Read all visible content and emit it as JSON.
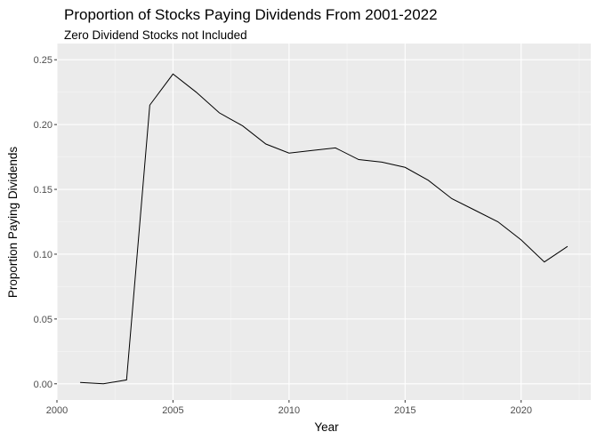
{
  "chart_data": {
    "type": "line",
    "title": "Proportion of Stocks Paying Dividends From 2001-2022",
    "subtitle": "Zero Dividend Stocks not Included",
    "xlabel": "Year",
    "ylabel": "Proportion Paying Dividends",
    "xlim": [
      2000,
      2023
    ],
    "ylim": [
      0,
      0.25
    ],
    "x_ticks": [
      2000,
      2005,
      2010,
      2015,
      2020
    ],
    "x_tick_labels": [
      "2000",
      "2005",
      "2010",
      "2015",
      "2020"
    ],
    "y_ticks": [
      0,
      0.05,
      0.1,
      0.15,
      0.2,
      0.25
    ],
    "y_tick_labels": [
      "0.00",
      "0.05",
      "0.10",
      "0.15",
      "0.20",
      "0.25"
    ],
    "grid": true,
    "background": "#ebebeb",
    "grid_color": "#ffffff",
    "line_color": "#000000",
    "x": [
      2001,
      2002,
      2003,
      2004,
      2005,
      2006,
      2007,
      2008,
      2009,
      2010,
      2011,
      2012,
      2013,
      2014,
      2015,
      2016,
      2017,
      2018,
      2019,
      2020,
      2021,
      2022
    ],
    "values": [
      0.001,
      0.0,
      0.003,
      0.215,
      0.239,
      0.225,
      0.209,
      0.199,
      0.185,
      0.178,
      0.18,
      0.182,
      0.173,
      0.171,
      0.167,
      0.157,
      0.143,
      0.134,
      0.125,
      0.111,
      0.094,
      0.106
    ]
  }
}
